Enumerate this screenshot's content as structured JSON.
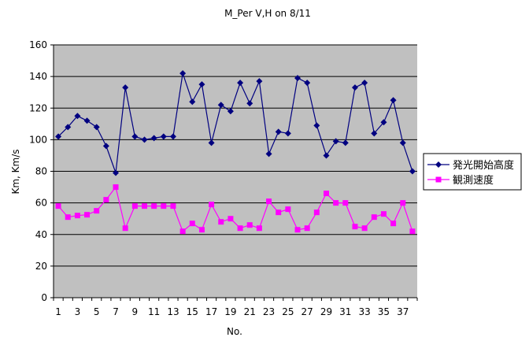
{
  "chart_data": {
    "type": "line",
    "title": "M_Per V,H on 8/11",
    "xlabel": "No.",
    "ylabel": "Km, Km/s",
    "ylim": [
      0,
      160
    ],
    "yticks": [
      0,
      20,
      40,
      60,
      80,
      100,
      120,
      140,
      160
    ],
    "xticks": [
      1,
      3,
      5,
      7,
      9,
      11,
      13,
      15,
      17,
      19,
      21,
      23,
      25,
      27,
      29,
      31,
      33,
      35,
      37
    ],
    "x": [
      1,
      2,
      3,
      4,
      5,
      6,
      7,
      8,
      9,
      10,
      11,
      12,
      13,
      14,
      15,
      16,
      17,
      18,
      19,
      20,
      21,
      22,
      23,
      24,
      25,
      26,
      27,
      28,
      29,
      30,
      31,
      32,
      33,
      34,
      35,
      36,
      37,
      38
    ],
    "grid": "horizontal",
    "legend_position": "right",
    "plot_background": "#c0c0c0",
    "series": [
      {
        "name": "発光開始高度",
        "color": "#000080",
        "marker": "diamond",
        "values": [
          102,
          108,
          115,
          112,
          108,
          96,
          79,
          133,
          102,
          100,
          101,
          102,
          102,
          142,
          124,
          135,
          98,
          122,
          118,
          136,
          123,
          137,
          91,
          105,
          104,
          139,
          136,
          109,
          90,
          99,
          98,
          133,
          136,
          104,
          111,
          125,
          98,
          80
        ]
      },
      {
        "name": "観測速度",
        "color": "#ff00ff",
        "marker": "square",
        "values": [
          58,
          51,
          52,
          52.5,
          55,
          62,
          70,
          44,
          58,
          58,
          58,
          58,
          58,
          42,
          47,
          43,
          59,
          48,
          50,
          44,
          46,
          44,
          61,
          54,
          56,
          43,
          44,
          54,
          66,
          60,
          60,
          45,
          44,
          51,
          53,
          47,
          60,
          42
        ]
      }
    ]
  }
}
